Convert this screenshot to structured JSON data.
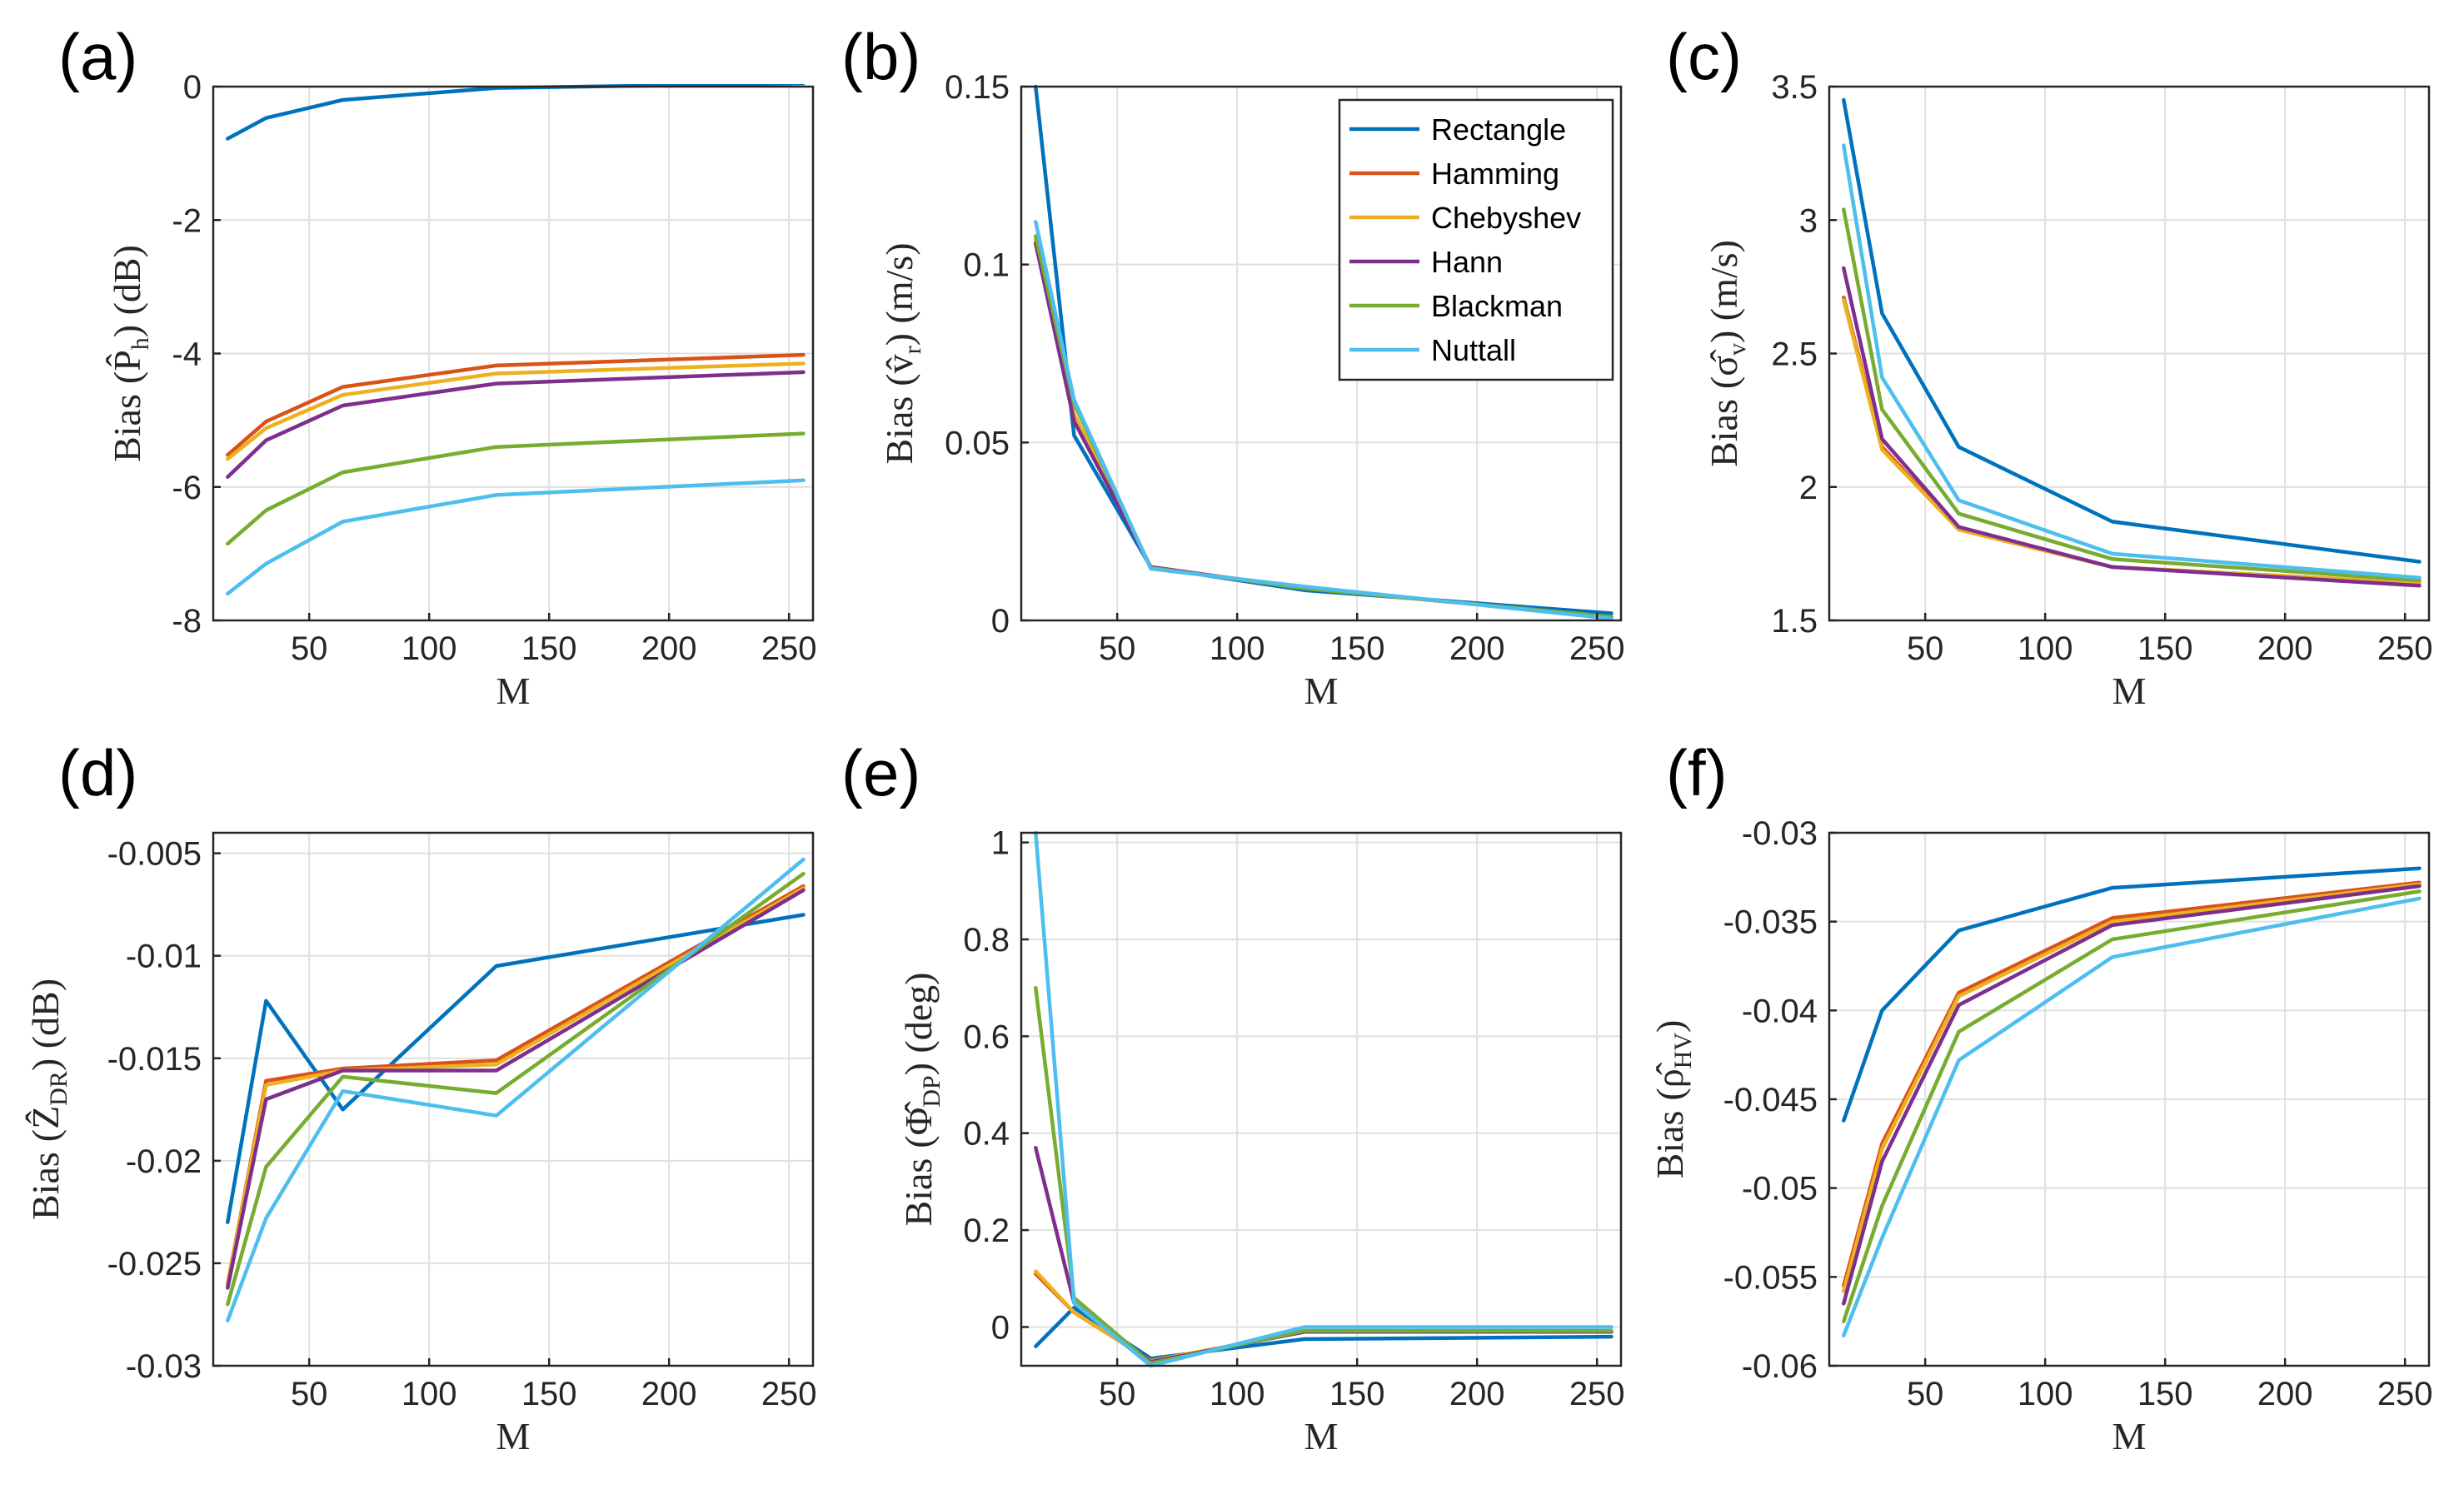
{
  "legend": {
    "entries": [
      {
        "name": "Rectangle",
        "color": "#0072BD"
      },
      {
        "name": "Hamming",
        "color": "#D95319"
      },
      {
        "name": "Chebyshev",
        "color": "#EDB120"
      },
      {
        "name": "Hann",
        "color": "#7E2F8E"
      },
      {
        "name": "Blackman",
        "color": "#77AC30"
      },
      {
        "name": "Nuttall",
        "color": "#4DBEEE"
      }
    ]
  },
  "chart_data": [
    {
      "id": "a",
      "letter": "(a)",
      "type": "line",
      "ylabel_main": "Bias",
      "ylabel_sym": "(P̂",
      "ylabel_sub": "h",
      "ylabel_unit": ") (dB)",
      "xlabel": "M",
      "x": [
        16,
        32,
        64,
        128,
        256
      ],
      "xlim": [
        10,
        260
      ],
      "ylim": [
        -8,
        0
      ],
      "xticks": [
        50,
        100,
        150,
        200,
        250
      ],
      "yticks": [
        0,
        -2,
        -4,
        -6,
        -8
      ],
      "yticklabels": [
        "0",
        "-2",
        "-4",
        "-6",
        "-8"
      ],
      "series": [
        {
          "name": "Rectangle",
          "values": [
            -0.78,
            -0.47,
            -0.2,
            -0.02,
            0.05
          ]
        },
        {
          "name": "Hamming",
          "values": [
            -5.52,
            -5.02,
            -4.5,
            -4.18,
            -4.02
          ]
        },
        {
          "name": "Chebyshev",
          "values": [
            -5.58,
            -5.12,
            -4.62,
            -4.3,
            -4.15
          ]
        },
        {
          "name": "Hann",
          "values": [
            -5.85,
            -5.3,
            -4.78,
            -4.45,
            -4.28
          ]
        },
        {
          "name": "Blackman",
          "values": [
            -6.85,
            -6.35,
            -5.78,
            -5.4,
            -5.2
          ]
        },
        {
          "name": "Nuttall",
          "values": [
            -7.6,
            -7.15,
            -6.52,
            -6.12,
            -5.9
          ]
        }
      ]
    },
    {
      "id": "b",
      "letter": "(b)",
      "type": "line",
      "ylabel_main": "Bias",
      "ylabel_sym": "(v̂",
      "ylabel_sub": "r",
      "ylabel_unit": ") (m/s)",
      "xlabel": "M",
      "x": [
        16,
        32,
        64,
        128,
        256
      ],
      "xlim": [
        10,
        260
      ],
      "ylim": [
        0,
        0.15
      ],
      "xticks": [
        50,
        100,
        150,
        200,
        250
      ],
      "yticks": [
        0,
        0.05,
        0.1,
        0.15
      ],
      "yticklabels": [
        "0",
        "0.05",
        "0.1",
        "0.15"
      ],
      "series": [
        {
          "name": "Rectangle",
          "values": [
            0.15,
            0.052,
            0.015,
            0.0085,
            0.002
          ]
        },
        {
          "name": "Hamming",
          "values": [
            0.106,
            0.057,
            0.015,
            0.009,
            0.001
          ]
        },
        {
          "name": "Chebyshev",
          "values": [
            0.107,
            0.058,
            0.015,
            0.009,
            0.001
          ]
        },
        {
          "name": "Hann",
          "values": [
            0.106,
            0.056,
            0.015,
            0.009,
            0.001
          ]
        },
        {
          "name": "Blackman",
          "values": [
            0.108,
            0.061,
            0.0148,
            0.009,
            0.001
          ]
        },
        {
          "name": "Nuttall",
          "values": [
            0.112,
            0.062,
            0.0145,
            0.0095,
            0.0005
          ]
        }
      ]
    },
    {
      "id": "c",
      "letter": "(c)",
      "type": "line",
      "ylabel_main": "Bias",
      "ylabel_sym": "(σ̂",
      "ylabel_sub": "v",
      "ylabel_unit": ") (m/s)",
      "xlabel": "M",
      "x": [
        16,
        32,
        64,
        128,
        256
      ],
      "xlim": [
        10,
        260
      ],
      "ylim": [
        1.5,
        3.5
      ],
      "xticks": [
        50,
        100,
        150,
        200,
        250
      ],
      "yticks": [
        1.5,
        2,
        2.5,
        3,
        3.5
      ],
      "yticklabels": [
        "1.5",
        "2",
        "2.5",
        "3",
        "3.5"
      ],
      "series": [
        {
          "name": "Rectangle",
          "values": [
            3.45,
            2.65,
            2.15,
            1.87,
            1.72
          ]
        },
        {
          "name": "Hamming",
          "values": [
            2.71,
            2.15,
            1.84,
            1.7,
            1.64
          ]
        },
        {
          "name": "Chebyshev",
          "values": [
            2.7,
            2.14,
            1.84,
            1.7,
            1.64
          ]
        },
        {
          "name": "Hann",
          "values": [
            2.82,
            2.18,
            1.85,
            1.7,
            1.63
          ]
        },
        {
          "name": "Blackman",
          "values": [
            3.04,
            2.29,
            1.9,
            1.73,
            1.65
          ]
        },
        {
          "name": "Nuttall",
          "values": [
            3.28,
            2.41,
            1.95,
            1.75,
            1.66
          ]
        }
      ]
    },
    {
      "id": "d",
      "letter": "(d)",
      "type": "line",
      "ylabel_main": "Bias",
      "ylabel_sym": "(Ẑ",
      "ylabel_sub": "DR",
      "ylabel_unit": ") (dB)",
      "xlabel": "M",
      "x": [
        16,
        32,
        64,
        128,
        256
      ],
      "xlim": [
        10,
        260
      ],
      "ylim": [
        -0.03,
        -0.004
      ],
      "xticks": [
        50,
        100,
        150,
        200,
        250
      ],
      "yticks": [
        -0.005,
        -0.01,
        -0.015,
        -0.02,
        -0.025,
        -0.03
      ],
      "yticklabels": [
        "-0.005",
        "-0.01",
        "-0.015",
        "-0.02",
        "-0.025",
        "-0.03"
      ],
      "series": [
        {
          "name": "Rectangle",
          "values": [
            -0.023,
            -0.0122,
            -0.0175,
            -0.0105,
            -0.008
          ]
        },
        {
          "name": "Hamming",
          "values": [
            -0.026,
            -0.0161,
            -0.0155,
            -0.0151,
            -0.0066
          ]
        },
        {
          "name": "Chebyshev",
          "values": [
            -0.026,
            -0.0163,
            -0.0156,
            -0.0153,
            -0.0067
          ]
        },
        {
          "name": "Hann",
          "values": [
            -0.0262,
            -0.017,
            -0.0156,
            -0.0156,
            -0.0068
          ]
        },
        {
          "name": "Blackman",
          "values": [
            -0.027,
            -0.0203,
            -0.0159,
            -0.0167,
            -0.006
          ]
        },
        {
          "name": "Nuttall",
          "values": [
            -0.0278,
            -0.0228,
            -0.0166,
            -0.0178,
            -0.0053
          ]
        }
      ]
    },
    {
      "id": "e",
      "letter": "(e)",
      "type": "line",
      "ylabel_main": "Bias",
      "ylabel_sym": "(Φ̂",
      "ylabel_sub": "DP",
      "ylabel_unit": ") (deg)",
      "xlabel": "M",
      "x": [
        16,
        32,
        64,
        128,
        256
      ],
      "xlim": [
        10,
        260
      ],
      "ylim": [
        -0.08,
        1.02
      ],
      "xticks": [
        50,
        100,
        150,
        200,
        250
      ],
      "yticks": [
        0,
        0.2,
        0.4,
        0.6,
        0.8,
        1
      ],
      "yticklabels": [
        "0",
        "0.2",
        "0.4",
        "0.6",
        "0.8",
        "1"
      ],
      "series": [
        {
          "name": "Rectangle",
          "values": [
            -0.04,
            0.04,
            -0.065,
            -0.025,
            -0.02
          ]
        },
        {
          "name": "Hamming",
          "values": [
            0.11,
            0.03,
            -0.07,
            -0.01,
            -0.01
          ]
        },
        {
          "name": "Chebyshev",
          "values": [
            0.115,
            0.03,
            -0.07,
            -0.01,
            -0.01
          ]
        },
        {
          "name": "Hann",
          "values": [
            0.37,
            0.05,
            -0.072,
            -0.01,
            -0.01
          ]
        },
        {
          "name": "Blackman",
          "values": [
            0.7,
            0.06,
            -0.075,
            -0.008,
            -0.008
          ]
        },
        {
          "name": "Nuttall",
          "values": [
            1.02,
            0.05,
            -0.08,
            0.0,
            0.0
          ]
        }
      ]
    },
    {
      "id": "f",
      "letter": "(f)",
      "type": "line",
      "ylabel_main": "Bias",
      "ylabel_sym": "(ρ̂",
      "ylabel_sub": "HV",
      "ylabel_unit": ")",
      "xlabel": "M",
      "x": [
        16,
        32,
        64,
        128,
        256
      ],
      "xlim": [
        10,
        260
      ],
      "ylim": [
        -0.06,
        -0.03
      ],
      "xticks": [
        50,
        100,
        150,
        200,
        250
      ],
      "yticks": [
        -0.03,
        -0.035,
        -0.04,
        -0.045,
        -0.05,
        -0.055,
        -0.06
      ],
      "yticklabels": [
        "-0.03",
        "-0.035",
        "-0.04",
        "-0.045",
        "-0.05",
        "-0.055",
        "-0.06"
      ],
      "series": [
        {
          "name": "Rectangle",
          "values": [
            -0.0462,
            -0.04,
            -0.0355,
            -0.0331,
            -0.032
          ]
        },
        {
          "name": "Hamming",
          "values": [
            -0.0555,
            -0.0475,
            -0.039,
            -0.0348,
            -0.0328
          ]
        },
        {
          "name": "Chebyshev",
          "values": [
            -0.0558,
            -0.0478,
            -0.0392,
            -0.035,
            -0.0329
          ]
        },
        {
          "name": "Hann",
          "values": [
            -0.0565,
            -0.0485,
            -0.0397,
            -0.0352,
            -0.033
          ]
        },
        {
          "name": "Blackman",
          "values": [
            -0.0575,
            -0.051,
            -0.0412,
            -0.036,
            -0.0333
          ]
        },
        {
          "name": "Nuttall",
          "values": [
            -0.0583,
            -0.0528,
            -0.0428,
            -0.037,
            -0.0337
          ]
        }
      ]
    }
  ]
}
